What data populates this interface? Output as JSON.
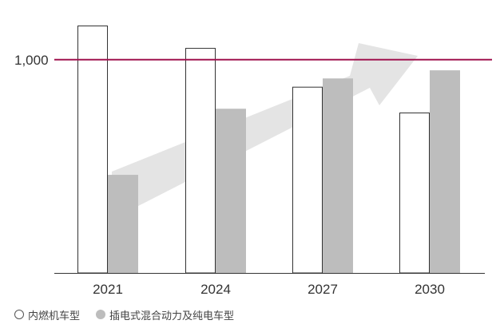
{
  "chart_data": {
    "type": "bar",
    "title": "",
    "xlabel": "",
    "ylabel": "",
    "categories": [
      "2021",
      "2024",
      "2027",
      "2030"
    ],
    "series": [
      {
        "name": "内燃机车型",
        "values": [
          1160,
          1055,
          873,
          752
        ]
      },
      {
        "name": "插电式混合动力及纯电车型",
        "values": [
          460,
          770,
          912,
          950
        ]
      }
    ],
    "ylim": [
      0,
      1160
    ],
    "y_tick_labels": [
      {
        "value": 1000,
        "label": "1,000"
      }
    ],
    "reference_line": {
      "value": 1000,
      "color": "#a0124f"
    },
    "trend_arrow": true,
    "grid": false,
    "legend_position": "bottom-left",
    "colors": {
      "hollow_bar": "#ffffff",
      "filled_bar": "#bdbdbd",
      "outline": "#333333",
      "arrow": "#e4e4e4"
    }
  }
}
